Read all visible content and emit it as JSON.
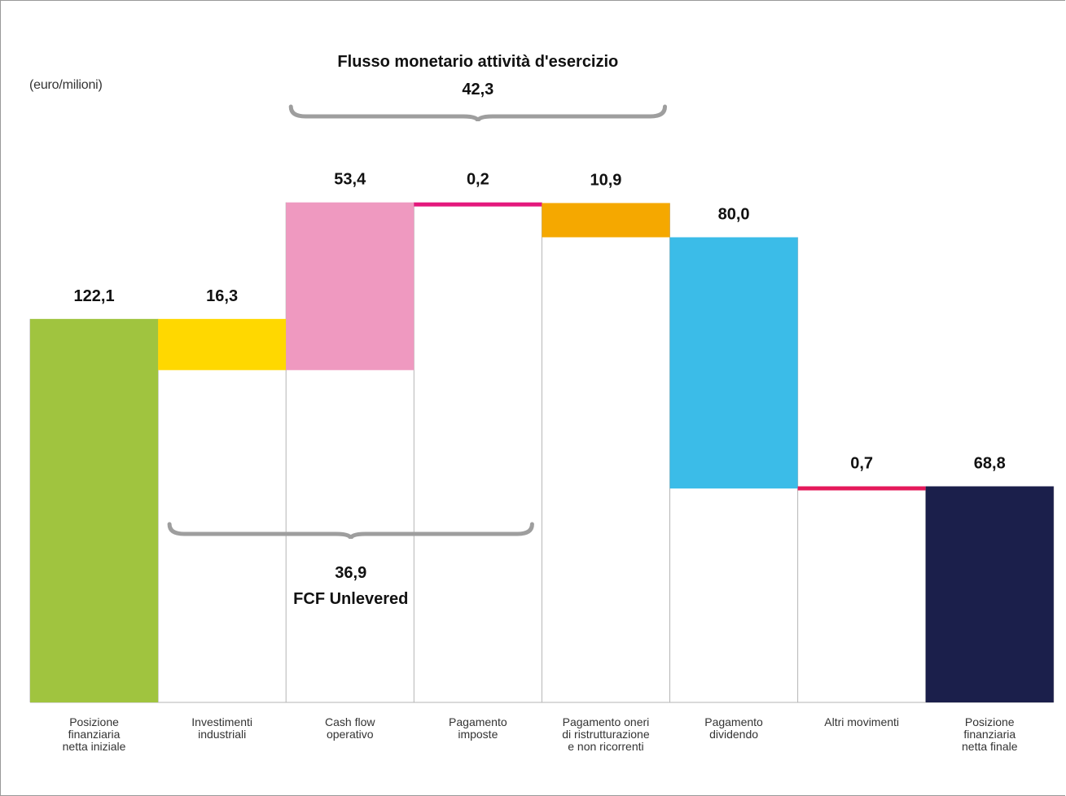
{
  "chart_data": {
    "type": "waterfall",
    "unit_label": "(euro/milioni)",
    "ylim": [
      0,
      177
    ],
    "bars": [
      {
        "value": 122.1,
        "label": "122,1",
        "kind": "total",
        "color": "#a0c43f",
        "category": [
          "Posizione",
          "finanziaria",
          "netta iniziale"
        ]
      },
      {
        "value": -16.3,
        "label": "16,3",
        "kind": "decrease",
        "color": "#ffd800",
        "category": [
          "Investimenti",
          "industriali"
        ]
      },
      {
        "value": 53.4,
        "label": "53,4",
        "kind": "increase",
        "color": "#ef99c0",
        "category": [
          "Cash flow",
          "operativo"
        ]
      },
      {
        "value": -0.2,
        "label": "0,2",
        "kind": "decrease",
        "color": "#e4197c",
        "category": [
          "Pagamento",
          "imposte"
        ]
      },
      {
        "value": -10.9,
        "label": "10,9",
        "kind": "decrease",
        "color": "#f5a800",
        "category": [
          "Pagamento oneri",
          "di ristrutturazione",
          "e non ricorrenti"
        ]
      },
      {
        "value": -80.0,
        "label": "80,0",
        "kind": "decrease",
        "color": "#3bbce8",
        "category": [
          "Pagamento",
          "dividendo"
        ]
      },
      {
        "value": 0.7,
        "label": "0,7",
        "kind": "increase",
        "color": "#e5195a",
        "category": [
          "Altri movimenti"
        ]
      },
      {
        "value": 68.8,
        "label": "68,8",
        "kind": "total",
        "color": "#1b1f4b",
        "category": [
          "Posizione",
          "finanziaria",
          "netta finale"
        ]
      }
    ],
    "annotations": {
      "top_brace": {
        "title": "Flusso monetario attività d'esercizio",
        "value": "42,3",
        "from_bar": 2,
        "to_bar": 4
      },
      "bottom_brace": {
        "value": "36,9",
        "title": "FCF Unlevered",
        "from_bar": 1,
        "to_bar": 3
      }
    },
    "brace_color": "#9e9e9e"
  }
}
